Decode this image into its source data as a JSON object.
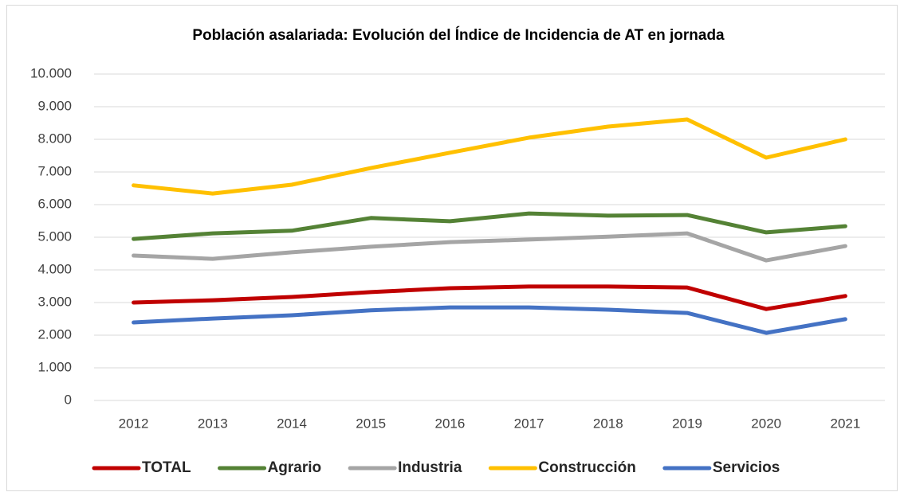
{
  "chart_data": {
    "type": "line",
    "title": "Población asalariada: Evolución del Índice de Incidencia de AT en jornada",
    "categories": [
      "2012",
      "2013",
      "2014",
      "2015",
      "2016",
      "2017",
      "2018",
      "2019",
      "2020",
      "2021"
    ],
    "series": [
      {
        "name": "TOTAL",
        "color": "#c00000",
        "values": [
          3000,
          3070,
          3170,
          3320,
          3440,
          3490,
          3490,
          3460,
          2800,
          3200
        ]
      },
      {
        "name": "Agrario",
        "color": "#548235",
        "values": [
          4950,
          5120,
          5200,
          5590,
          5490,
          5730,
          5660,
          5680,
          5150,
          5340
        ]
      },
      {
        "name": "Industria",
        "color": "#a5a5a5",
        "values": [
          4440,
          4340,
          4540,
          4710,
          4850,
          4930,
          5020,
          5120,
          4290,
          4730
        ]
      },
      {
        "name": "Construcción",
        "color": "#ffc000",
        "values": [
          6590,
          6340,
          6610,
          7120,
          7590,
          8050,
          8390,
          8610,
          7440,
          8000
        ]
      },
      {
        "name": "Servicios",
        "color": "#4472c4",
        "values": [
          2390,
          2510,
          2610,
          2760,
          2850,
          2850,
          2780,
          2680,
          2070,
          2490
        ]
      }
    ],
    "ylim": [
      0,
      10000
    ],
    "yticks": [
      0,
      {
        "value": 1000,
        "label": "1.000"
      },
      {
        "value": 2000,
        "label": "2.000"
      },
      {
        "value": 3000,
        "label": "3.000"
      },
      {
        "value": 4000,
        "label": "4.000"
      },
      {
        "value": 5000,
        "label": "5.000"
      },
      {
        "value": 6000,
        "label": "6.000"
      },
      {
        "value": 7000,
        "label": "7.000"
      },
      {
        "value": 8000,
        "label": "8.000"
      },
      {
        "value": 9000,
        "label": "9.000"
      },
      {
        "value": 10000,
        "label": "10.000"
      }
    ],
    "grid": true,
    "legend": "bottom"
  }
}
